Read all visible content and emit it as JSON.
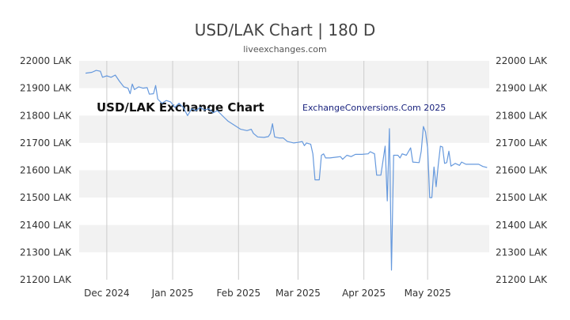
{
  "header": {
    "title": "USD/LAK Chart | 180 D",
    "subtitle": "liveexchanges.com"
  },
  "watermark": {
    "left": "USD/LAK Exchange Chart",
    "right": "ExchangeConversions.Com 2025"
  },
  "colors": {
    "line": "#6699dd",
    "band": "#f2f2f2",
    "grid": "#cccccc"
  },
  "chart_data": {
    "type": "line",
    "title": "USD/LAK Chart | 180 D",
    "xlabel": "",
    "ylabel": "",
    "ylim": [
      21200,
      22000
    ],
    "yticks": [
      22000,
      21900,
      21800,
      21700,
      21600,
      21500,
      21400,
      21300,
      21200
    ],
    "ytick_labels": [
      "22000 LAK",
      "21900 LAK",
      "21800 LAK",
      "21700 LAK",
      "21600 LAK",
      "21500 LAK",
      "21400 LAK",
      "21300 LAK",
      "21200 LAK"
    ],
    "xlim": [
      "2024-11-18",
      "2025-05-30"
    ],
    "xticks": [
      "2024-12-01",
      "2025-01-01",
      "2025-02-01",
      "2025-03-01",
      "2025-04-01",
      "2025-05-01"
    ],
    "xtick_labels": [
      "Dec 2024",
      "Jan 2025",
      "Feb 2025",
      "Mar 2025",
      "Apr 2025",
      "May 2025"
    ],
    "grid": true,
    "series": [
      {
        "points": [
          [
            "2024-11-21",
            21955
          ],
          [
            "2024-11-24",
            21958
          ],
          [
            "2024-11-26",
            21965
          ],
          [
            "2024-11-28",
            21962
          ],
          [
            "2024-11-29",
            21940
          ],
          [
            "2024-12-01",
            21945
          ],
          [
            "2024-12-03",
            21940
          ],
          [
            "2024-12-05",
            21948
          ],
          [
            "2024-12-07",
            21925
          ],
          [
            "2024-12-09",
            21905
          ],
          [
            "2024-12-11",
            21900
          ],
          [
            "2024-12-12",
            21880
          ],
          [
            "2024-12-13",
            21915
          ],
          [
            "2024-12-14",
            21895
          ],
          [
            "2024-12-16",
            21905
          ],
          [
            "2024-12-18",
            21900
          ],
          [
            "2024-12-20",
            21902
          ],
          [
            "2024-12-21",
            21878
          ],
          [
            "2024-12-23",
            21880
          ],
          [
            "2024-12-24",
            21910
          ],
          [
            "2024-12-25",
            21860
          ],
          [
            "2024-12-27",
            21845
          ],
          [
            "2024-12-29",
            21855
          ],
          [
            "2024-12-31",
            21850
          ],
          [
            "2025-01-02",
            21830
          ],
          [
            "2025-01-04",
            21845
          ],
          [
            "2025-01-06",
            21830
          ],
          [
            "2025-01-08",
            21800
          ],
          [
            "2025-01-10",
            21825
          ],
          [
            "2025-01-12",
            21818
          ],
          [
            "2025-01-14",
            21830
          ],
          [
            "2025-01-16",
            21820
          ],
          [
            "2025-01-18",
            21825
          ],
          [
            "2025-01-20",
            21810
          ],
          [
            "2025-01-22",
            21818
          ],
          [
            "2025-01-25",
            21795
          ],
          [
            "2025-01-27",
            21780
          ],
          [
            "2025-01-30",
            21765
          ],
          [
            "2025-02-02",
            21750
          ],
          [
            "2025-02-05",
            21745
          ],
          [
            "2025-02-07",
            21750
          ],
          [
            "2025-02-08",
            21735
          ],
          [
            "2025-02-10",
            21722
          ],
          [
            "2025-02-13",
            21720
          ],
          [
            "2025-02-15",
            21723
          ],
          [
            "2025-02-16",
            21735
          ],
          [
            "2025-02-17",
            21770
          ],
          [
            "2025-02-18",
            21722
          ],
          [
            "2025-02-20",
            21718
          ],
          [
            "2025-02-22",
            21718
          ],
          [
            "2025-02-24",
            21705
          ],
          [
            "2025-02-27",
            21700
          ],
          [
            "2025-03-01",
            21702
          ],
          [
            "2025-03-03",
            21705
          ],
          [
            "2025-03-04",
            21690
          ],
          [
            "2025-03-05",
            21700
          ],
          [
            "2025-03-07",
            21695
          ],
          [
            "2025-03-08",
            21660
          ],
          [
            "2025-03-09",
            21565
          ],
          [
            "2025-03-11",
            21565
          ],
          [
            "2025-03-12",
            21655
          ],
          [
            "2025-03-13",
            21660
          ],
          [
            "2025-03-14",
            21645
          ],
          [
            "2025-03-16",
            21645
          ],
          [
            "2025-03-19",
            21648
          ],
          [
            "2025-03-21",
            21650
          ],
          [
            "2025-03-22",
            21640
          ],
          [
            "2025-03-24",
            21655
          ],
          [
            "2025-03-26",
            21650
          ],
          [
            "2025-03-28",
            21658
          ],
          [
            "2025-03-31",
            21658
          ],
          [
            "2025-04-03",
            21660
          ],
          [
            "2025-04-04",
            21668
          ],
          [
            "2025-04-06",
            21660
          ],
          [
            "2025-04-07",
            21582
          ],
          [
            "2025-04-09",
            21582
          ],
          [
            "2025-04-11",
            21688
          ],
          [
            "2025-04-12",
            21488
          ],
          [
            "2025-04-13",
            21752
          ],
          [
            "2025-04-14",
            21235
          ],
          [
            "2025-04-15",
            21655
          ],
          [
            "2025-04-17",
            21655
          ],
          [
            "2025-04-18",
            21645
          ],
          [
            "2025-04-19",
            21660
          ],
          [
            "2025-04-21",
            21655
          ],
          [
            "2025-04-23",
            21682
          ],
          [
            "2025-04-24",
            21630
          ],
          [
            "2025-04-27",
            21628
          ],
          [
            "2025-04-28",
            21670
          ],
          [
            "2025-04-29",
            21760
          ],
          [
            "2025-04-30",
            21740
          ],
          [
            "2025-05-01",
            21680
          ],
          [
            "2025-05-02",
            21500
          ],
          [
            "2025-05-03",
            21500
          ],
          [
            "2025-05-04",
            21612
          ],
          [
            "2025-05-05",
            21540
          ],
          [
            "2025-05-06",
            21620
          ],
          [
            "2025-05-07",
            21688
          ],
          [
            "2025-05-08",
            21685
          ],
          [
            "2025-05-09",
            21625
          ],
          [
            "2025-05-10",
            21628
          ],
          [
            "2025-05-11",
            21670
          ],
          [
            "2025-05-12",
            21615
          ],
          [
            "2025-05-14",
            21625
          ],
          [
            "2025-05-16",
            21618
          ],
          [
            "2025-05-17",
            21630
          ],
          [
            "2025-05-19",
            21622
          ],
          [
            "2025-05-22",
            21622
          ],
          [
            "2025-05-25",
            21622
          ],
          [
            "2025-05-27",
            21614
          ],
          [
            "2025-05-29",
            21610
          ]
        ]
      }
    ]
  }
}
